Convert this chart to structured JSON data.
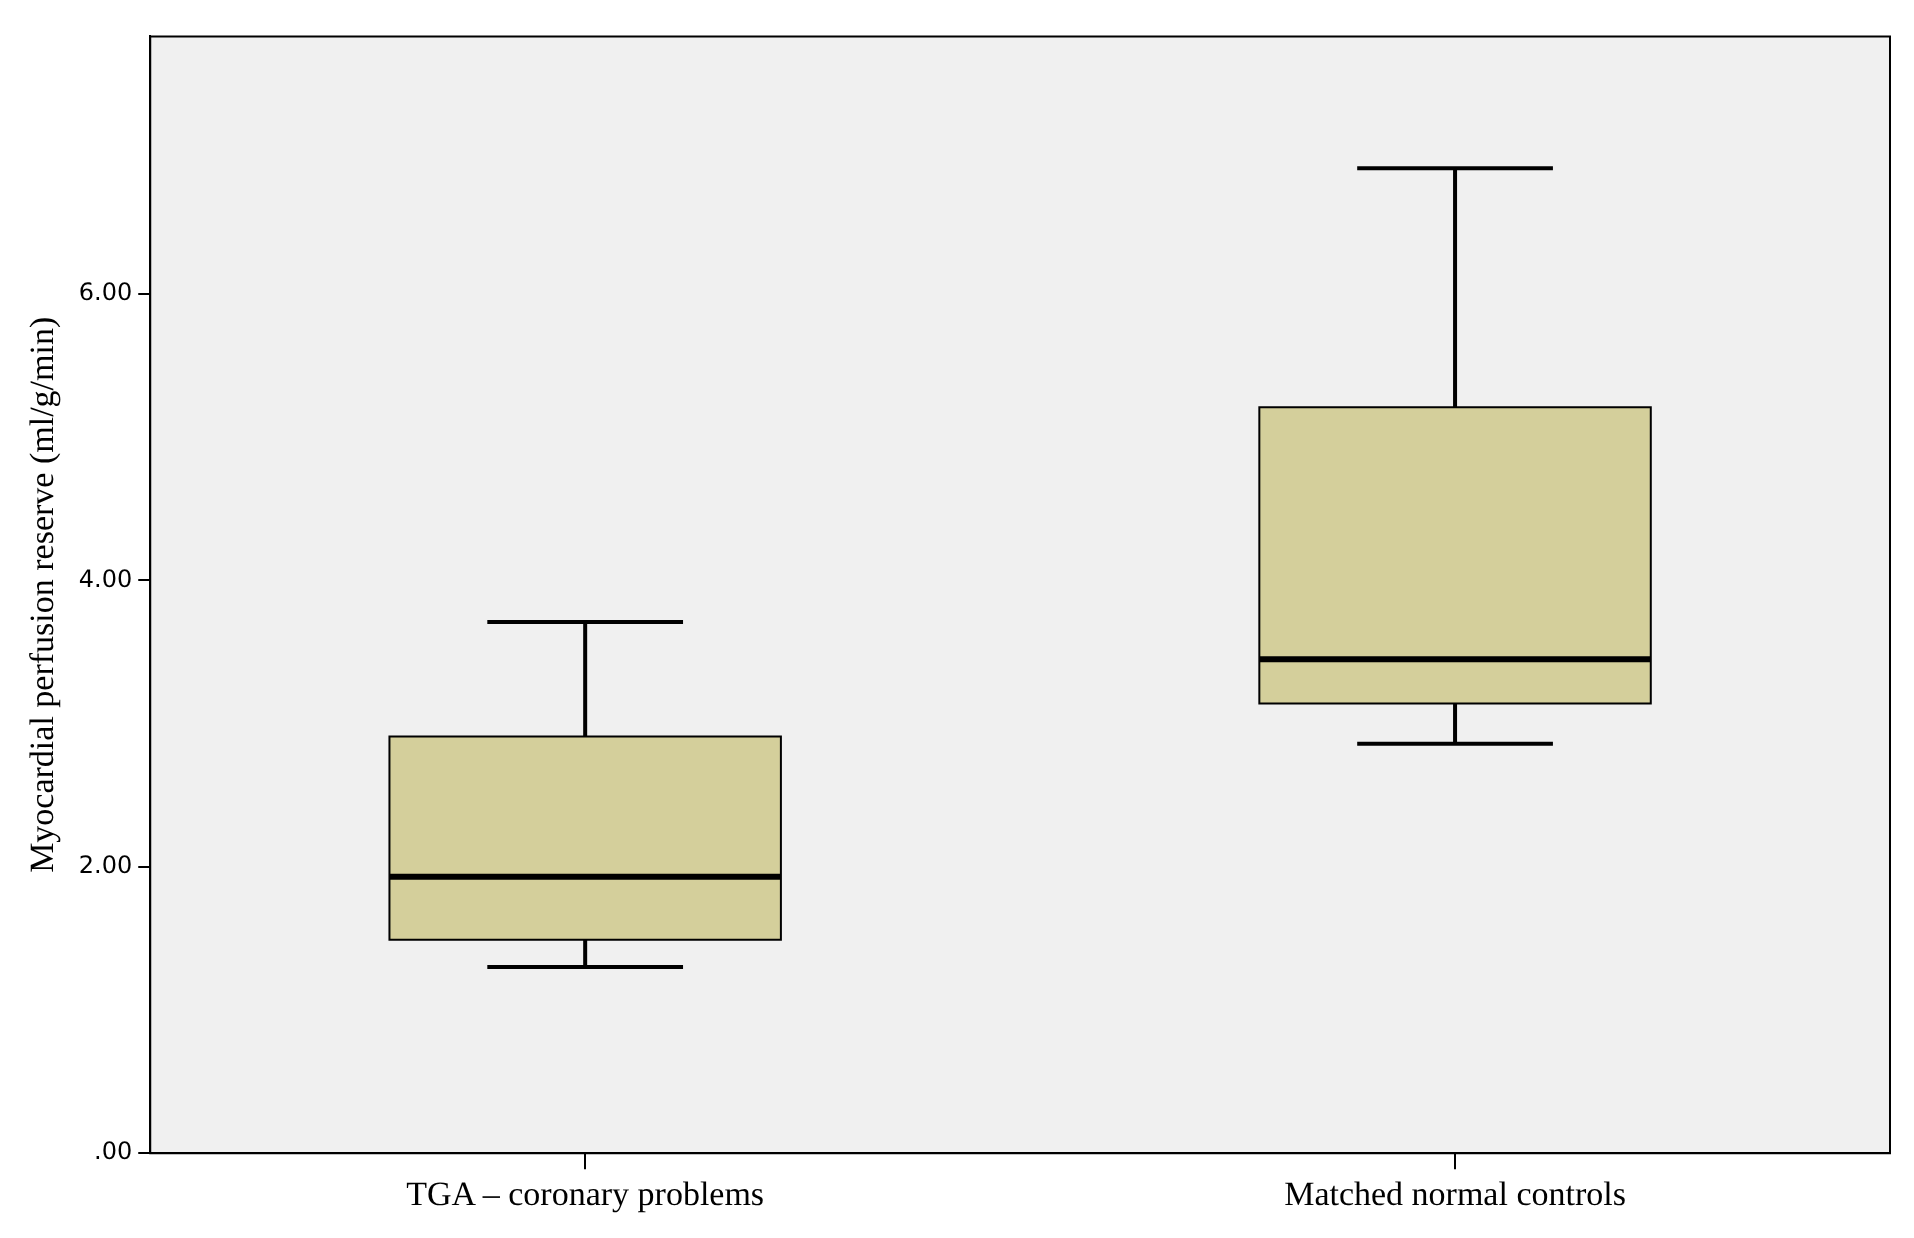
{
  "chart_data": {
    "type": "box",
    "ylabel": "Myocardial perfusion reserve (ml/g/min)",
    "categories": [
      "TGA – coronary problems",
      "Matched normal controls"
    ],
    "boxes": [
      {
        "low": 1.3,
        "q1": 1.49,
        "median": 1.93,
        "q3": 2.91,
        "high": 3.71
      },
      {
        "low": 2.86,
        "q1": 3.14,
        "median": 3.45,
        "q3": 5.21,
        "high": 6.88
      }
    ],
    "color": "#d4cf9b",
    "ylim": [
      0,
      7.8
    ],
    "yticks": [
      {
        "value": 0,
        "label": ".00"
      },
      {
        "value": 2,
        "label": "2.00"
      },
      {
        "value": 4,
        "label": "4.00"
      },
      {
        "value": 6,
        "label": "6.00"
      }
    ],
    "grid": false
  }
}
